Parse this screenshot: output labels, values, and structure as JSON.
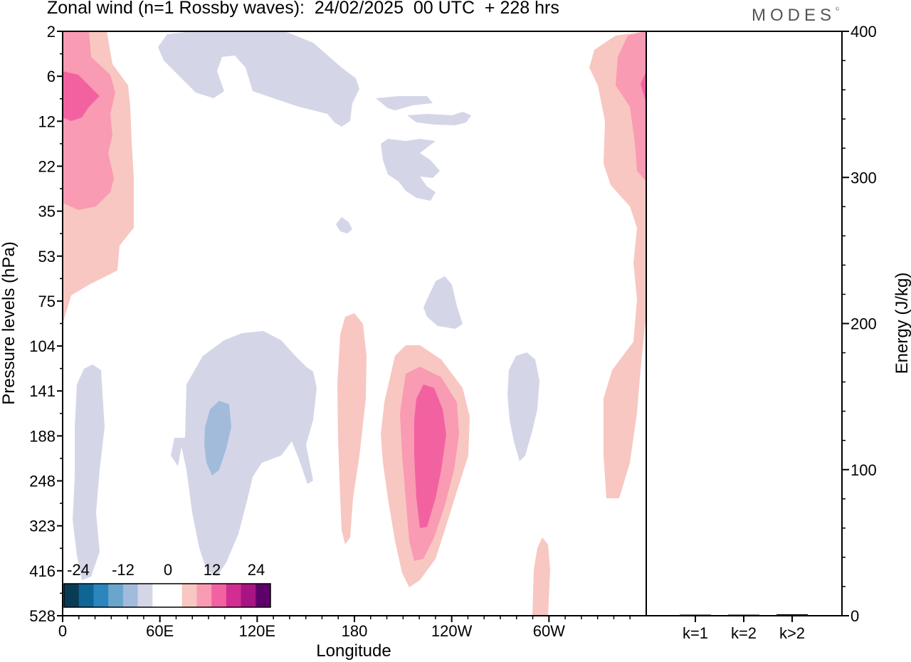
{
  "header": {
    "title": "Zonal wind (n=1 Rossby waves):  24/02/2025  00 UTC  + 228 hrs",
    "brand": "MODES"
  },
  "chart_data": [
    {
      "type": "heatmap",
      "xlabel": "Longitude",
      "ylabel": "Pressure levels (hPa)",
      "x_ticks": [
        "0",
        "60E",
        "120E",
        "180",
        "120W",
        "60W"
      ],
      "y_ticks": [
        "2",
        "6",
        "12",
        "22",
        "35",
        "53",
        "75",
        "104",
        "141",
        "188",
        "248",
        "323",
        "416",
        "528"
      ],
      "colorbar": {
        "tick_labels": [
          "-24",
          "-12",
          "0",
          "12",
          "24"
        ],
        "colors": [
          "#0a3b55",
          "#0f6593",
          "#2a86bd",
          "#6aa6cc",
          "#a2bbdb",
          "#d4d6e8",
          "#ffffff",
          "#ffffff",
          "#f8c7c1",
          "#f99bb3",
          "#f262a1",
          "#d42d91",
          "#a61583",
          "#5e006a"
        ]
      },
      "contours": [
        {
          "color": "#f8c7c1",
          "value": 6,
          "region": "0-30E, 2-90 hPa"
        },
        {
          "color": "#f99bb3",
          "value": 9,
          "region": "0-25E, 2-35 hPa"
        },
        {
          "color": "#f262a1",
          "value": 12,
          "region": "0-15E, 6-12 hPa"
        },
        {
          "color": "#f8c7c1",
          "value": 6,
          "region": "165-170E... east of dateline, 90-330 hPa"
        },
        {
          "color": "#f8c7c1",
          "value": 6,
          "region": "160W-125W, 110-400 hPa"
        },
        {
          "color": "#f99bb3",
          "value": 9,
          "region": "150W-130W, 125-380 hPa"
        },
        {
          "color": "#f262a1",
          "value": 12,
          "region": "145W-135W, 140-310 hPa"
        },
        {
          "color": "#f8c7c1",
          "value": 6,
          "region": "20W-0, 2-290 hPa"
        },
        {
          "color": "#d4d6e8",
          "value": -6,
          "region": "60E-175E, 2-330 hPa scattered"
        },
        {
          "color": "#a2bbdb",
          "value": -9,
          "region": "85E-95E, 160-230 hPa"
        }
      ]
    },
    {
      "type": "bar",
      "categories": [
        "k=1",
        "k=2",
        "k>2"
      ],
      "values": [
        0.3,
        0.6,
        1.0
      ],
      "ylabel": "Energy (J/kg)",
      "ylim": [
        0,
        400
      ],
      "y_ticks": [
        "0",
        "100",
        "200",
        "300",
        "400"
      ]
    }
  ]
}
